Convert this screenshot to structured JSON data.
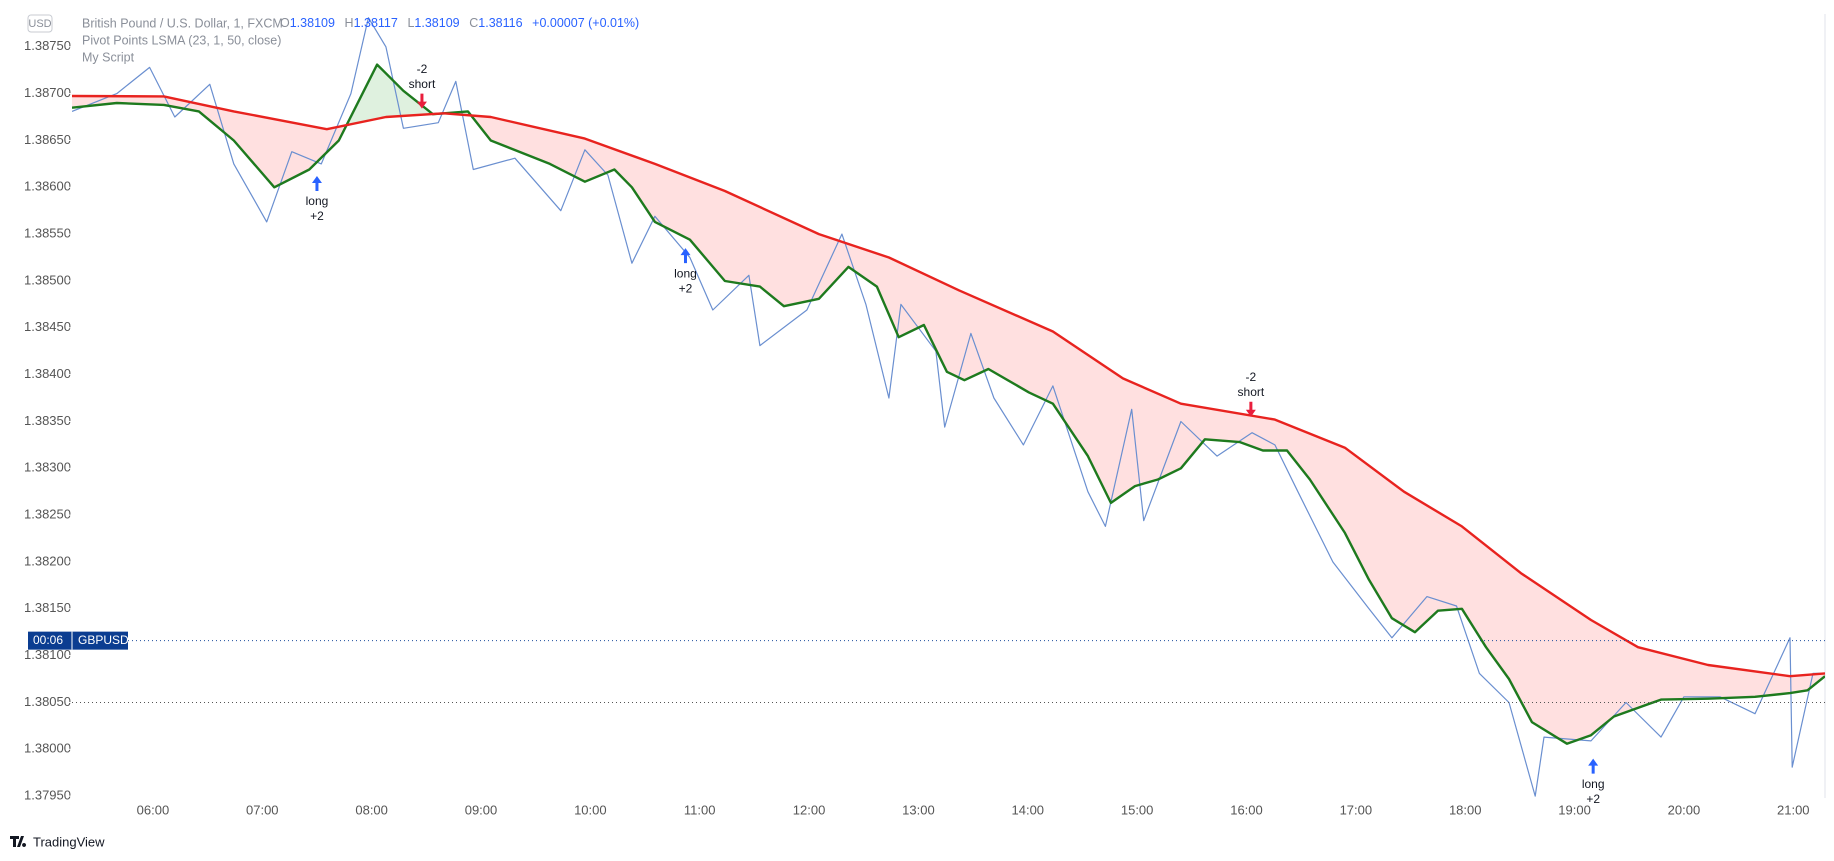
{
  "chart_data": {
    "type": "line",
    "currency": "USD",
    "title": "British Pound / U.S. Dollar, 1, FXCM",
    "ohlc": {
      "o_label": "O",
      "o": 1.38109,
      "h_label": "H",
      "h": 1.38117,
      "l_label": "L",
      "l": 1.38109,
      "c_label": "C",
      "c": 1.38116,
      "change": "+0.00007 (+0.01%)"
    },
    "indicator": "Pivot Points LSMA (23, 1, 50, close)",
    "script": "My Script",
    "price_tag": {
      "time": "00:06",
      "symbol": "GBPUSD"
    },
    "reference_line": 1.3805,
    "branding": "TradingView",
    "xlim": [
      5.26,
      21.29
    ],
    "ylim": [
      1.37948,
      1.38785
    ],
    "xticks": [
      {
        "value": 6,
        "label": "06:00"
      },
      {
        "value": 7,
        "label": "07:00"
      },
      {
        "value": 8,
        "label": "08:00"
      },
      {
        "value": 9,
        "label": "09:00"
      },
      {
        "value": 10,
        "label": "10:00"
      },
      {
        "value": 11,
        "label": "11:00"
      },
      {
        "value": 12,
        "label": "12:00"
      },
      {
        "value": 13,
        "label": "13:00"
      },
      {
        "value": 14,
        "label": "14:00"
      },
      {
        "value": 15,
        "label": "15:00"
      },
      {
        "value": 16,
        "label": "16:00"
      },
      {
        "value": 17,
        "label": "17:00"
      },
      {
        "value": 18,
        "label": "18:00"
      },
      {
        "value": 19,
        "label": "19:00"
      },
      {
        "value": 20,
        "label": "20:00"
      },
      {
        "value": 21,
        "label": "21:00"
      }
    ],
    "yticks": [
      {
        "value": 1.3875,
        "label": "1.38750"
      },
      {
        "value": 1.387,
        "label": "1.38700"
      },
      {
        "value": 1.3865,
        "label": "1.38650"
      },
      {
        "value": 1.386,
        "label": "1.38600"
      },
      {
        "value": 1.3855,
        "label": "1.38550"
      },
      {
        "value": 1.385,
        "label": "1.38500"
      },
      {
        "value": 1.3845,
        "label": "1.38450"
      },
      {
        "value": 1.384,
        "label": "1.38400"
      },
      {
        "value": 1.3835,
        "label": "1.38350"
      },
      {
        "value": 1.383,
        "label": "1.38300"
      },
      {
        "value": 1.3825,
        "label": "1.38250"
      },
      {
        "value": 1.382,
        "label": "1.38200"
      },
      {
        "value": 1.3815,
        "label": "1.38150"
      },
      {
        "value": 1.381,
        "label": "1.38100"
      },
      {
        "value": 1.3805,
        "label": "1.38050"
      },
      {
        "value": 1.38,
        "label": "1.38000"
      },
      {
        "value": 1.3795,
        "label": "1.37950"
      }
    ],
    "series": [
      {
        "color": "#6a8fd0",
        "x": [
          5.26,
          5.67,
          5.97,
          6.2,
          6.52,
          6.74,
          7.04,
          7.27,
          7.54,
          7.81,
          7.97,
          8.13,
          8.29,
          8.61,
          8.77,
          8.93,
          9.31,
          9.73,
          9.95,
          10.16,
          10.38,
          10.59,
          10.91,
          11.12,
          11.45,
          11.55,
          11.98,
          12.3,
          12.52,
          12.73,
          12.84,
          13.16,
          13.24,
          13.48,
          13.69,
          13.96,
          14.23,
          14.55,
          14.71,
          14.95,
          15.06,
          15.4,
          15.73,
          16.05,
          16.26,
          16.47,
          16.79,
          17.12,
          17.33,
          17.65,
          17.92,
          18.13,
          18.4,
          18.64,
          18.72,
          19.15,
          19.47,
          19.79,
          20.0,
          20.33,
          20.65,
          20.97,
          20.99,
          21.18,
          21.29
        ],
        "values": [
          1.38681,
          1.387,
          1.38728,
          1.38675,
          1.3871,
          1.38625,
          1.38563,
          1.38638,
          1.38625,
          1.387,
          1.38781,
          1.3875,
          1.38663,
          1.38669,
          1.38713,
          1.38619,
          1.38631,
          1.38575,
          1.3864,
          1.38613,
          1.38519,
          1.38569,
          1.38525,
          1.38469,
          1.38506,
          1.38431,
          1.38469,
          1.3855,
          1.38475,
          1.38375,
          1.38475,
          1.38425,
          1.38344,
          1.38444,
          1.38375,
          1.38325,
          1.38388,
          1.38275,
          1.38238,
          1.38363,
          1.38244,
          1.3835,
          1.38313,
          1.38338,
          1.38325,
          1.38275,
          1.382,
          1.3815,
          1.38119,
          1.38163,
          1.38153,
          1.38081,
          1.3805,
          1.3795,
          1.38013,
          1.38009,
          1.3805,
          1.38013,
          1.38056,
          1.38056,
          1.38038,
          1.38119,
          1.37981,
          1.38081,
          1.38081
        ]
      },
      {
        "color": "#1e7a1e",
        "role": "lsma",
        "x": [
          5.26,
          5.67,
          6.1,
          6.42,
          6.74,
          7.11,
          7.43,
          7.7,
          8.05,
          8.29,
          8.56,
          8.88,
          9.09,
          9.63,
          9.95,
          10.22,
          10.38,
          10.59,
          10.91,
          11.23,
          11.55,
          11.77,
          12.09,
          12.36,
          12.62,
          12.82,
          13.05,
          13.26,
          13.42,
          13.64,
          14.01,
          14.23,
          14.55,
          14.76,
          14.98,
          15.19,
          15.4,
          15.62,
          15.94,
          16.15,
          16.37,
          16.58,
          16.9,
          17.12,
          17.33,
          17.54,
          17.75,
          17.97,
          18.19,
          18.4,
          18.61,
          18.93,
          19.15,
          19.36,
          19.79,
          20.22,
          20.65,
          20.97,
          21.13,
          21.29
        ],
        "values": [
          1.38685,
          1.3869,
          1.38688,
          1.38681,
          1.3865,
          1.386,
          1.38619,
          1.3865,
          1.38731,
          1.38703,
          1.38678,
          1.38681,
          1.3865,
          1.38625,
          1.38606,
          1.38619,
          1.386,
          1.38563,
          1.38544,
          1.385,
          1.38494,
          1.38473,
          1.38481,
          1.38515,
          1.38494,
          1.3844,
          1.38453,
          1.38403,
          1.38394,
          1.38406,
          1.38381,
          1.38369,
          1.38313,
          1.38263,
          1.38281,
          1.38288,
          1.383,
          1.38331,
          1.38328,
          1.38319,
          1.38319,
          1.38288,
          1.38231,
          1.38181,
          1.3814,
          1.38125,
          1.38148,
          1.3815,
          1.38109,
          1.38075,
          1.38029,
          1.38006,
          1.38015,
          1.38035,
          1.38053,
          1.38054,
          1.38056,
          1.3806,
          1.38063,
          1.38078
        ]
      },
      {
        "color": "#e8231f",
        "role": "sma",
        "x": [
          5.26,
          6.1,
          6.74,
          7.59,
          8.13,
          8.66,
          9.09,
          9.95,
          10.59,
          11.23,
          12.09,
          12.73,
          13.37,
          14.23,
          14.87,
          15.4,
          16.26,
          16.9,
          17.44,
          17.97,
          18.51,
          19.15,
          19.58,
          20.22,
          20.97,
          21.29
        ],
        "values": [
          1.386975,
          1.38697,
          1.38681,
          1.38662,
          1.38675,
          1.38679,
          1.38675,
          1.38652,
          1.38625,
          1.38596,
          1.3855,
          1.38525,
          1.3849,
          1.38446,
          1.38396,
          1.38369,
          1.38352,
          1.38322,
          1.38275,
          1.38238,
          1.38188,
          1.38138,
          1.38109,
          1.3809,
          1.38078,
          1.38081
        ]
      }
    ],
    "signals": [
      {
        "x": 7.5,
        "value": 1.38612,
        "label": "long",
        "amount": "+2"
      },
      {
        "x": 8.46,
        "value": 1.38684,
        "label": "short",
        "amount": "-2"
      },
      {
        "x": 10.87,
        "value": 1.38535,
        "label": "long",
        "amount": "+2"
      },
      {
        "x": 16.04,
        "value": 1.38355,
        "label": "short",
        "amount": "-2"
      },
      {
        "x": 19.17,
        "value": 1.3799,
        "label": "long",
        "amount": "+2"
      }
    ]
  }
}
